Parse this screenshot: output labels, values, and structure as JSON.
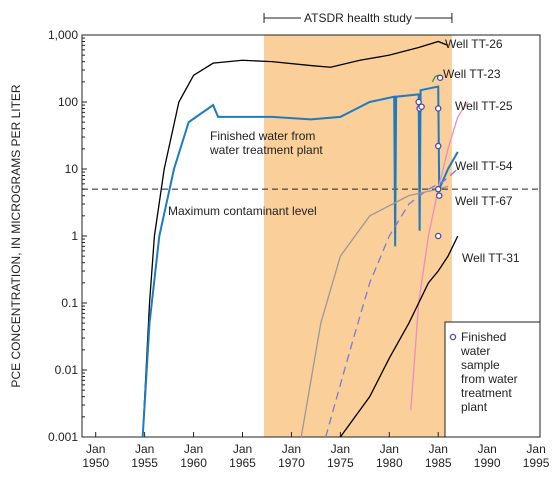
{
  "chart_data": {
    "type": "line",
    "log_y": true,
    "y_label": "PCE CONCENTRATION, IN MICROGRAMS PER LITER",
    "xlim": [
      1948.6,
      1995.4
    ],
    "ylim": [
      0.001,
      1000
    ],
    "xticks": [
      {
        "value": 1950,
        "label": "Jan 1950"
      },
      {
        "value": 1955,
        "label": "Jan 1955"
      },
      {
        "value": 1960,
        "label": "Jan 1960"
      },
      {
        "value": 1965,
        "label": "Jan 1965"
      },
      {
        "value": 1970,
        "label": "Jan 1970"
      },
      {
        "value": 1975,
        "label": "Jan 1975"
      },
      {
        "value": 1980,
        "label": "Jan 1980"
      },
      {
        "value": 1985,
        "label": "Jan 1985"
      },
      {
        "value": 1990,
        "label": "Jan 1990"
      },
      {
        "value": 1995,
        "label": "Jan 1995"
      }
    ],
    "yticks": [
      0.001,
      0.01,
      0.1,
      1,
      10,
      100,
      {
        "value": 1000,
        "label": "1,000"
      }
    ],
    "shaded_period": {
      "label": "ATSDR health study",
      "x": [
        1967.2,
        1986.4
      ],
      "color": "#fbcf9a"
    },
    "reference_line": {
      "label": "Maximum contaminant level",
      "value": 5
    },
    "series": [
      {
        "name": "Well TT-26",
        "color": "#000000",
        "dash": false,
        "x": [
          1954.8,
          1955.5,
          1956,
          1957,
          1958.5,
          1960,
          1962,
          1965,
          1968,
          1972,
          1974,
          1977,
          1980,
          1983,
          1985,
          1986
        ],
        "values": [
          0.001,
          0.1,
          1,
          10,
          100,
          250,
          380,
          420,
          400,
          350,
          330,
          420,
          500,
          650,
          800,
          700
        ]
      },
      {
        "name": "Well TT-23",
        "color": "#2a9d4a",
        "dash": false,
        "x": [
          1984.4,
          1984.7,
          1985,
          1985.3
        ],
        "values": [
          200,
          240,
          250,
          230
        ]
      },
      {
        "name": "Finished water from water treatment plant",
        "color": "#1f7bbf",
        "dash": false,
        "x": [
          1954.8,
          1955.5,
          1956.5,
          1958,
          1959.5,
          1961.5,
          1962,
          1962.5,
          1965,
          1968,
          1972,
          1975,
          1978,
          1980.5,
          1980.6,
          1980.7,
          1983,
          1983.1,
          1983.2,
          1985,
          1985.1,
          1986,
          1987
        ],
        "values": [
          0.001,
          0.05,
          1,
          10,
          50,
          80,
          90,
          60,
          60,
          60,
          55,
          60,
          100,
          120,
          0.7,
          120,
          130,
          1.2,
          150,
          170,
          5,
          10,
          18
        ]
      },
      {
        "name": "Well TT-25",
        "color": "#e88fbf",
        "dash": false,
        "x": [
          1982.2,
          1983,
          1984,
          1985,
          1986,
          1987,
          1988
        ],
        "values": [
          0.0025,
          0.1,
          1,
          5,
          20,
          60,
          100
        ]
      },
      {
        "name": "Well TT-54",
        "color": "#7b7bd0",
        "dash": true,
        "x": [
          1973.5,
          1976,
          1978,
          1980,
          1982,
          1984,
          1985.5,
          1987
        ],
        "values": [
          0.001,
          0.02,
          0.2,
          1,
          3,
          5,
          6.5,
          10
        ]
      },
      {
        "name": "Well TT-67",
        "color": "#999999",
        "dash": false,
        "x": [
          1971,
          1973,
          1975,
          1978,
          1982,
          1985,
          1986
        ],
        "values": [
          0.001,
          0.05,
          0.5,
          2,
          4,
          5,
          5.5
        ]
      },
      {
        "name": "Well TT-31",
        "color": "#000000",
        "dash": false,
        "x": [
          1975,
          1978,
          1980,
          1982,
          1984,
          1985,
          1986,
          1987
        ],
        "values": [
          0.001,
          0.004,
          0.015,
          0.05,
          0.2,
          0.3,
          0.5,
          1
        ]
      }
    ],
    "samples": {
      "name": "Finished water sample from water treatment plant",
      "color": "#4a4aa8",
      "x": [
        1983,
        1983.1,
        1983.3,
        1985,
        1985,
        1985,
        1985.1,
        1985,
        1985.2
      ],
      "values": [
        100,
        80,
        85,
        80,
        22,
        5,
        4,
        1,
        230
      ]
    }
  }
}
